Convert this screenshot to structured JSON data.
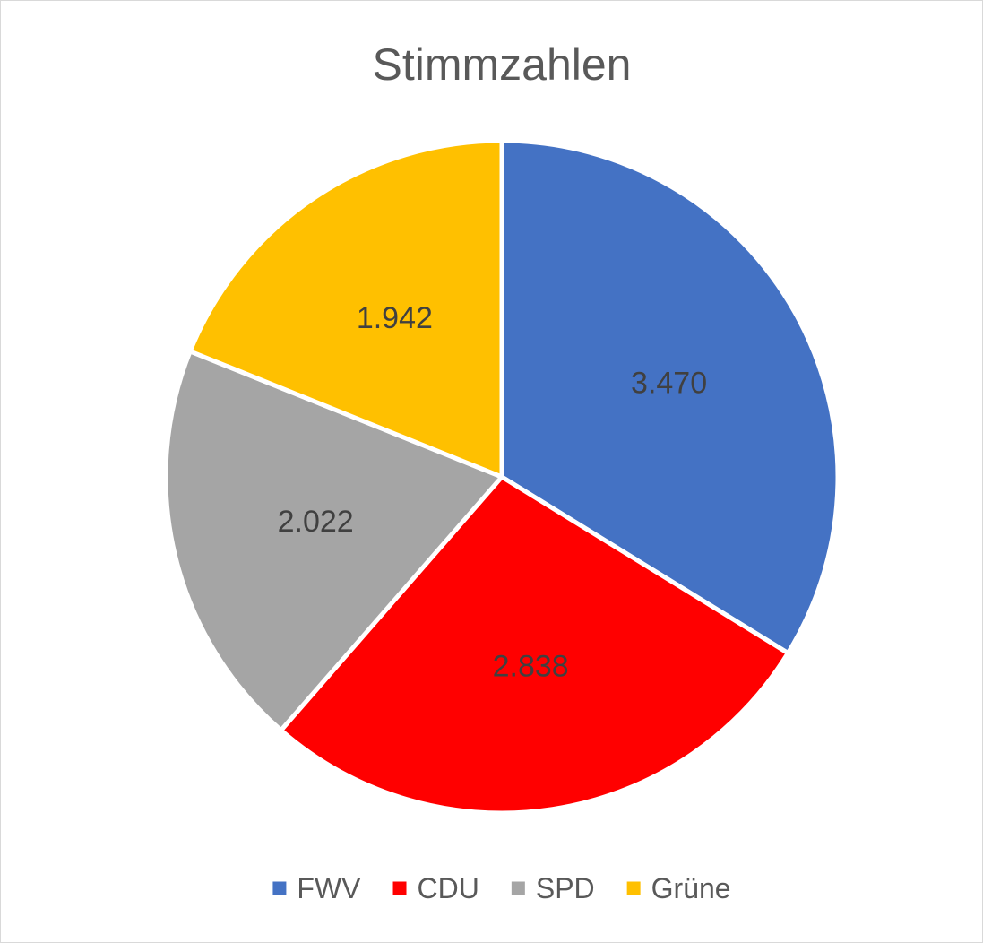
{
  "chart_data": {
    "type": "pie",
    "title": "Stimmzahlen",
    "categories": [
      "FWV",
      "CDU",
      "SPD",
      "Grüne"
    ],
    "values": [
      3470,
      2838,
      2022,
      1942
    ],
    "data_labels": [
      "3.470",
      "2.838",
      "2.022",
      "1.942"
    ],
    "colors": [
      "#4472C4",
      "#FF0000",
      "#A5A5A5",
      "#FFC000"
    ],
    "start_angle_deg": 0,
    "direction": "clockwise",
    "legend": {
      "position": "bottom",
      "entries": [
        "FWV",
        "CDU",
        "SPD",
        "Grüne"
      ]
    }
  }
}
